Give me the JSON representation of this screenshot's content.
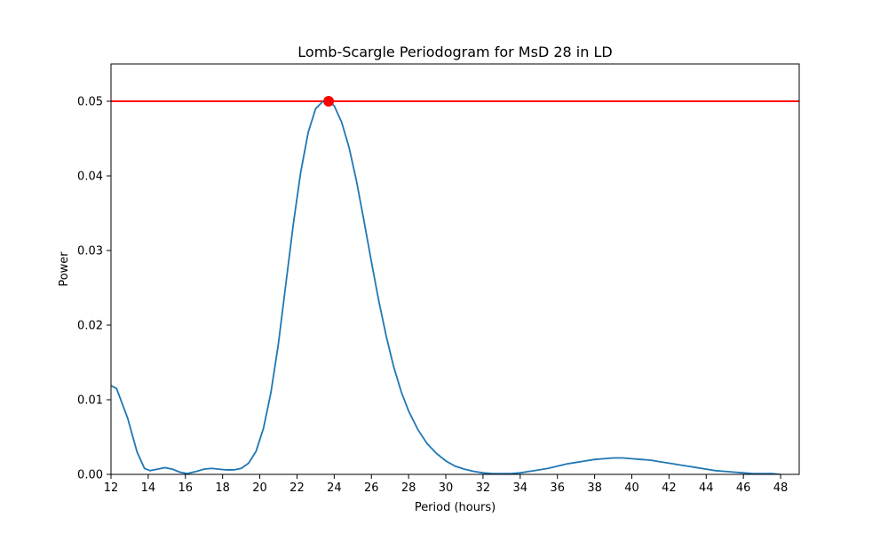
{
  "chart_data": {
    "type": "line",
    "title": "Lomb-Scargle Periodogram for MsD 28 in LD",
    "xlabel": "Period (hours)",
    "ylabel": "Power",
    "xlim": [
      12,
      49
    ],
    "ylim": [
      0,
      0.055
    ],
    "xticks": [
      "12",
      "14",
      "16",
      "18",
      "20",
      "22",
      "24",
      "26",
      "28",
      "30",
      "32",
      "34",
      "36",
      "38",
      "40",
      "42",
      "44",
      "46",
      "48"
    ],
    "yticks": [
      "0.00",
      "0.01",
      "0.02",
      "0.03",
      "0.04",
      "0.05"
    ],
    "grid": false,
    "colors": {
      "line": "#1f77b4",
      "threshold": "#ff0000",
      "peak": "#ff0000"
    },
    "series": [
      {
        "x": [
          12.0,
          12.3,
          12.9,
          13.4,
          13.8,
          14.1,
          14.5,
          14.9,
          15.3,
          15.7,
          16.1,
          16.6,
          17.0,
          17.4,
          17.8,
          18.2,
          18.6,
          19.0,
          19.4,
          19.8,
          20.2,
          20.6,
          21.0,
          21.4,
          21.8,
          22.2,
          22.6,
          23.0,
          23.4,
          23.7,
          24.0,
          24.4,
          24.8,
          25.2,
          25.6,
          26.0,
          26.4,
          26.8,
          27.2,
          27.6,
          28.0,
          28.5,
          29.0,
          29.5,
          30.0,
          30.5,
          31.0,
          31.5,
          32.0,
          32.5,
          33.0,
          33.5,
          34.0,
          34.5,
          35.0,
          35.5,
          36.0,
          36.5,
          37.0,
          37.5,
          38.0,
          38.5,
          39.0,
          39.5,
          40.0,
          40.5,
          41.0,
          41.5,
          42.0,
          42.5,
          43.0,
          43.5,
          44.0,
          44.5,
          45.0,
          45.5,
          46.0,
          46.5,
          47.0,
          47.5,
          48.0
        ],
        "y": [
          0.0119,
          0.0115,
          0.0075,
          0.003,
          0.0008,
          0.0005,
          0.0007,
          0.0009,
          0.0007,
          0.0003,
          0.0001,
          0.0004,
          0.0007,
          0.0008,
          0.0007,
          0.0006,
          0.0006,
          0.0008,
          0.0015,
          0.0031,
          0.0062,
          0.011,
          0.0175,
          0.0255,
          0.0335,
          0.0405,
          0.0458,
          0.049,
          0.05,
          0.05,
          0.0494,
          0.0472,
          0.0438,
          0.0393,
          0.034,
          0.0285,
          0.0232,
          0.0185,
          0.0144,
          0.0111,
          0.0085,
          0.006,
          0.0041,
          0.0028,
          0.0018,
          0.0011,
          0.0007,
          0.0004,
          0.0002,
          0.0001,
          0.0001,
          0.0001,
          0.0002,
          0.0004,
          0.0006,
          0.0008,
          0.0011,
          0.0014,
          0.0016,
          0.0018,
          0.002,
          0.0021,
          0.0022,
          0.0022,
          0.0021,
          0.002,
          0.0019,
          0.0017,
          0.0015,
          0.0013,
          0.0011,
          0.0009,
          0.0007,
          0.0005,
          0.0004,
          0.0003,
          0.0002,
          0.0001,
          0.0001,
          0.0001,
          0.0
        ]
      }
    ],
    "threshold": 0.05,
    "peak": {
      "x": 23.7,
      "y": 0.05
    }
  }
}
